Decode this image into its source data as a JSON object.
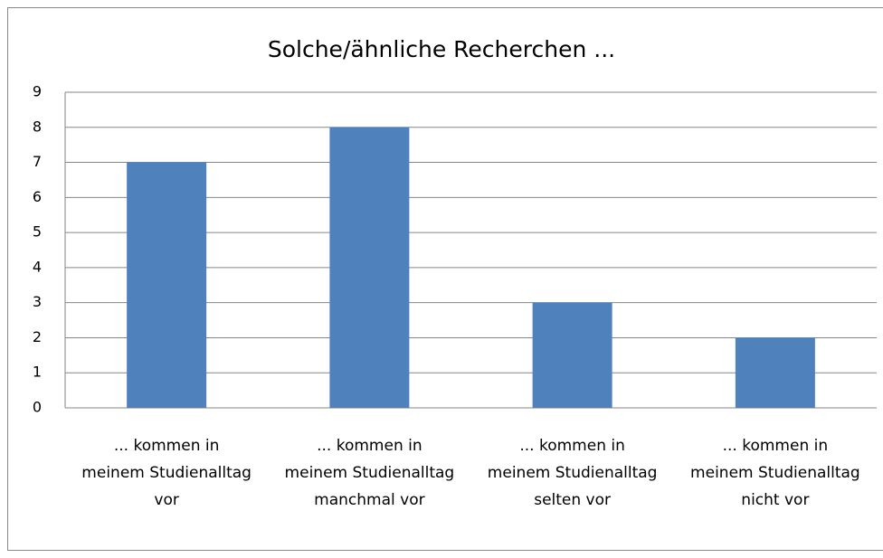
{
  "chart_data": {
    "type": "bar",
    "title": "Solche/ähnliche Recherchen ...",
    "categories": [
      "... kommen in meinem Studienalltag vor",
      "... kommen in meinem Studienalltag manchmal vor",
      "... kommen in meinem Studienalltag selten vor",
      "... kommen in meinem Studienalltag nicht vor"
    ],
    "values": [
      7,
      8,
      3,
      2
    ],
    "color": "#4f81bd",
    "ylim": [
      0,
      9
    ],
    "yticks": [
      0,
      1,
      2,
      3,
      4,
      5,
      6,
      7,
      8,
      9
    ],
    "grid": true
  }
}
